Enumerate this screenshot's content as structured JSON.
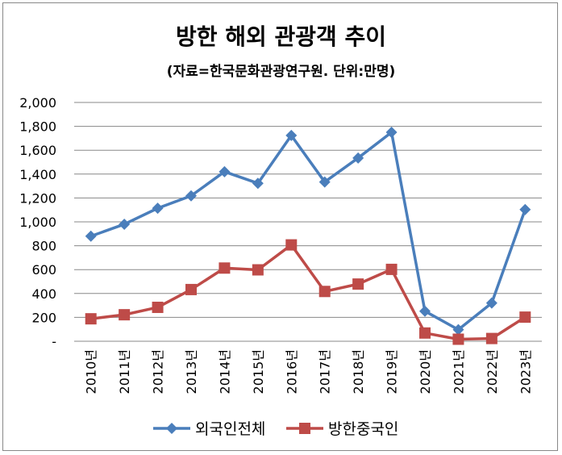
{
  "chart_data": {
    "type": "line",
    "title": "방한 해외 관광객 추이",
    "subtitle": "(자료=한국문화관광연구원. 단위:만명)",
    "categories": [
      "2010년",
      "2011년",
      "2012년",
      "2013년",
      "2014년",
      "2015년",
      "2016년",
      "2017년",
      "2018년",
      "2019년",
      "2020년",
      "2021년",
      "2022년",
      "2023년"
    ],
    "ylim": [
      0,
      2000
    ],
    "yticks": [
      0,
      200,
      400,
      600,
      800,
      1000,
      1200,
      1400,
      1600,
      1800,
      2000
    ],
    "ytick_labels": [
      "-",
      "200",
      "400",
      "600",
      "800",
      "1,000",
      "1,200",
      "1,400",
      "1,600",
      "1,800",
      "2,000"
    ],
    "grid": true,
    "legend": "bottom",
    "series": [
      {
        "name": "외국인전체",
        "color": "#4A7EBB",
        "marker": "diamond",
        "values": [
          880,
          980,
          1114,
          1218,
          1420,
          1323,
          1724,
          1334,
          1535,
          1750,
          252,
          97,
          320,
          1103
        ]
      },
      {
        "name": "방한중국인",
        "color": "#BE4B48",
        "marker": "square",
        "values": [
          188,
          222,
          284,
          433,
          613,
          598,
          807,
          417,
          479,
          602,
          69,
          17,
          23,
          202
        ]
      }
    ]
  }
}
